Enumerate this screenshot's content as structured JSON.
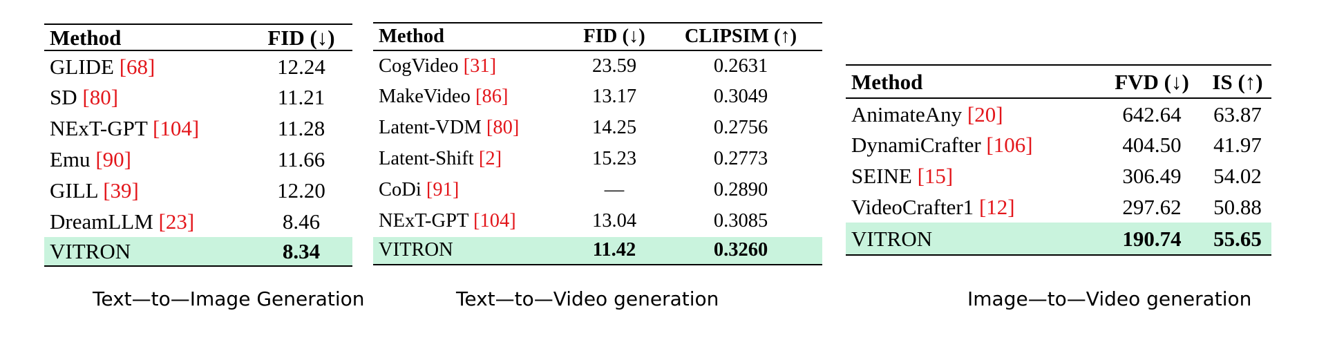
{
  "tables": [
    {
      "caption": "Text—to—Image Generation",
      "headers": [
        "Method",
        "FID (↓)"
      ],
      "rows": [
        {
          "name": "GLIDE ",
          "ref": "[68]",
          "cells": [
            "12.24"
          ]
        },
        {
          "name": "SD ",
          "ref": "[80]",
          "cells": [
            "11.21"
          ]
        },
        {
          "name": "NExT-GPT ",
          "ref": "[104]",
          "cells": [
            "11.28"
          ]
        },
        {
          "name": "Emu ",
          "ref": "[90]",
          "cells": [
            "11.66"
          ]
        },
        {
          "name": "GILL ",
          "ref": "[39]",
          "cells": [
            "12.20"
          ]
        },
        {
          "name": "DreamLLM ",
          "ref": "[23]",
          "cells": [
            "8.46"
          ]
        }
      ],
      "ours": {
        "name": "VITRON",
        "cells": [
          "8.34"
        ]
      }
    },
    {
      "caption": "Text—to—Video generation",
      "headers": [
        "Method",
        "FID (↓)",
        "CLIPSIM (↑)"
      ],
      "rows": [
        {
          "name": "CogVideo ",
          "ref": "[31]",
          "cells": [
            "23.59",
            "0.2631"
          ]
        },
        {
          "name": "MakeVideo ",
          "ref": "[86]",
          "cells": [
            "13.17",
            "0.3049"
          ]
        },
        {
          "name": "Latent-VDM ",
          "ref": "[80]",
          "cells": [
            "14.25",
            "0.2756"
          ]
        },
        {
          "name": "Latent-Shift ",
          "ref": "[2]",
          "cells": [
            "15.23",
            "0.2773"
          ]
        },
        {
          "name": "CoDi ",
          "ref": "[91]",
          "cells": [
            "—",
            "0.2890"
          ]
        },
        {
          "name": "NExT-GPT ",
          "ref": "[104]",
          "cells": [
            "13.04",
            "0.3085"
          ]
        }
      ],
      "ours": {
        "name": "VITRON",
        "cells": [
          "11.42",
          "0.3260"
        ]
      }
    },
    {
      "caption": "Image—to—Video generation",
      "headers": [
        "Method",
        "FVD (↓)",
        "IS (↑)"
      ],
      "rows": [
        {
          "name": "AnimateAny ",
          "ref": "[20]",
          "cells": [
            "642.64",
            "63.87"
          ]
        },
        {
          "name": "DynamiCrafter ",
          "ref": "[106]",
          "cells": [
            "404.50",
            "41.97"
          ]
        },
        {
          "name": "SEINE ",
          "ref": "[15]",
          "cells": [
            "306.49",
            "54.02"
          ]
        },
        {
          "name": "VideoCrafter1 ",
          "ref": "[12]",
          "cells": [
            "297.62",
            "50.88"
          ]
        }
      ],
      "ours": {
        "name": "VITRON",
        "cells": [
          "190.74",
          "55.65"
        ]
      }
    }
  ]
}
